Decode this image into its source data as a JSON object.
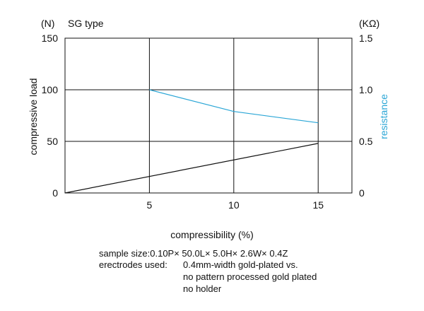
{
  "chart_data": {
    "type": "line",
    "title": "SG type",
    "xlabel": "compressibility (%)",
    "ylabel_left": "compressive load",
    "ylabel_right": "resistance",
    "unit_left": "(N)",
    "unit_right": "(KΩ)",
    "xlim": [
      0,
      17
    ],
    "ylim_left": [
      0,
      150
    ],
    "ylim_right": [
      0,
      1.5
    ],
    "x_ticks": [
      5,
      10,
      15
    ],
    "y_ticks_left": [
      "0",
      "50",
      "100",
      "150"
    ],
    "y_ticks_right": [
      "0",
      "0.5",
      "1.0",
      "1.5"
    ],
    "grid": true,
    "series": [
      {
        "axis": "left",
        "color": "#111111",
        "x": [
          0,
          15
        ],
        "y": [
          0,
          48
        ]
      },
      {
        "axis": "right",
        "color": "#2aa6d6",
        "x": [
          5,
          10,
          15
        ],
        "y": [
          1.0,
          0.79,
          0.68
        ]
      }
    ]
  },
  "notes": {
    "sample_size": "sample size:0.10P× 50.0L× 5.0H× 2.6W× 0.4Z",
    "electrodes_label": "erectrodes used:",
    "electrodes_line1": "0.4mm-width gold-plated vs.",
    "electrodes_line2": "no pattern processed gold plated",
    "electrodes_line3": "no holder"
  }
}
